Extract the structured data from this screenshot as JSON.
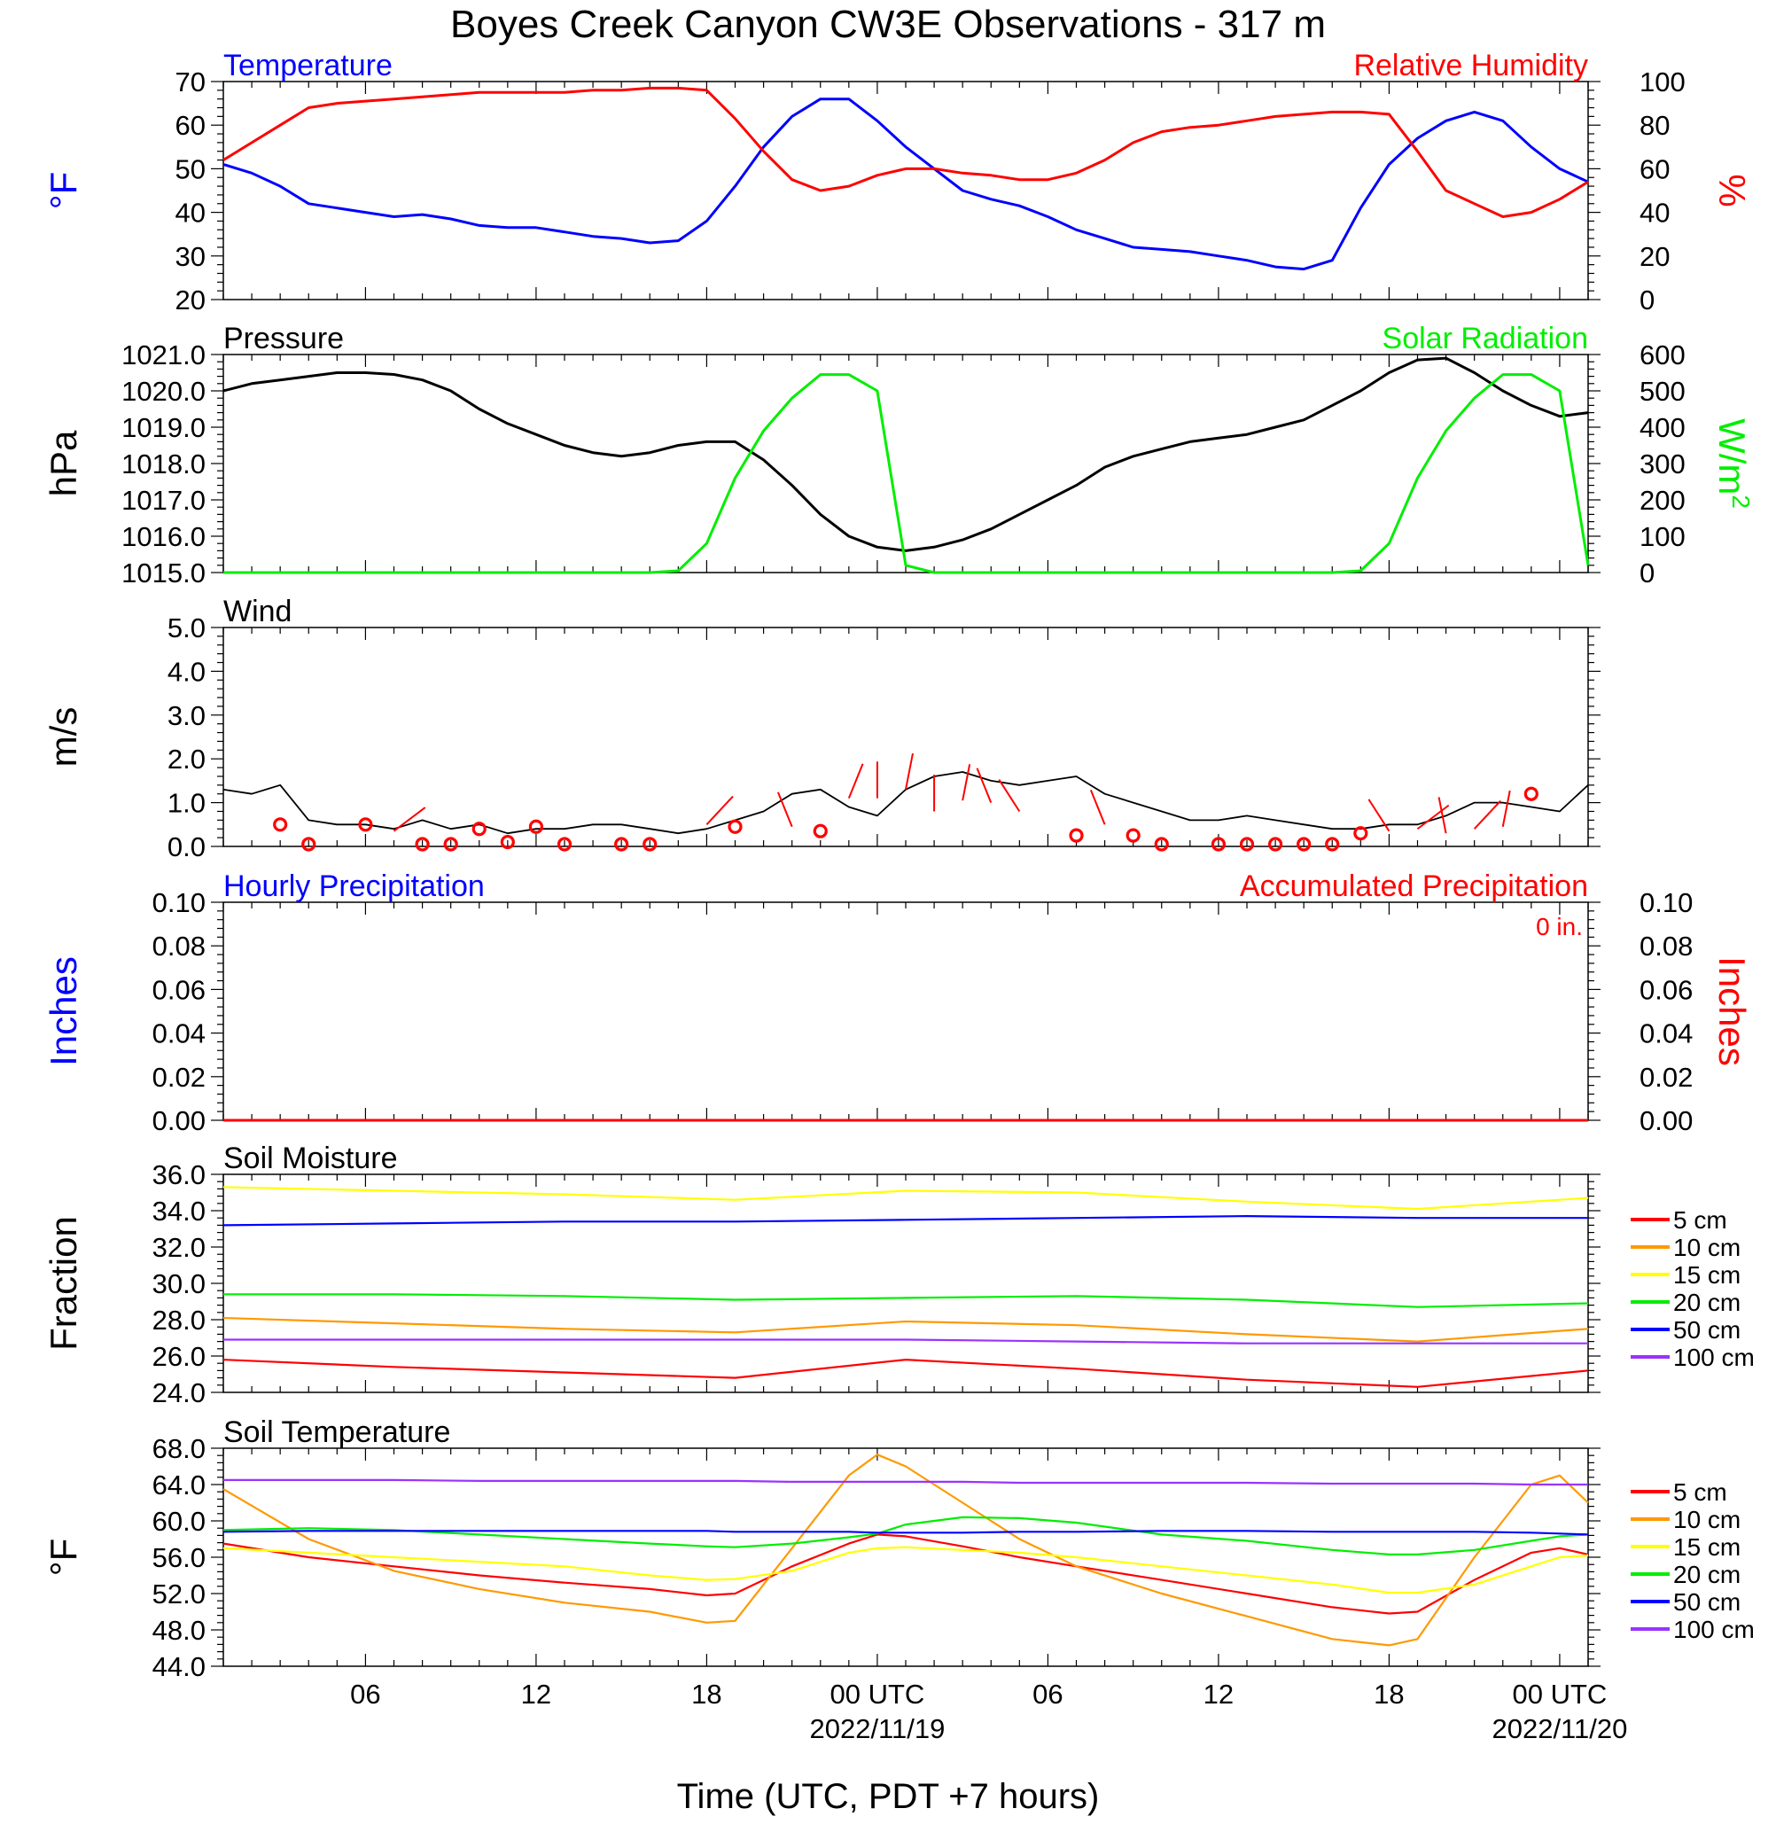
{
  "title": "Boyes Creek Canyon CW3E Observations - 317 m",
  "x_axis": {
    "label": "Time (UTC, PDT +7 hours)",
    "range_hours": [
      0,
      48
    ],
    "ticks": [
      {
        "hour": 5,
        "label": "06"
      },
      {
        "hour": 11,
        "label": "12"
      },
      {
        "hour": 17,
        "label": "18"
      },
      {
        "hour": 23,
        "label": "00 UTC",
        "date": "2022/11/19"
      },
      {
        "hour": 29,
        "label": "06"
      },
      {
        "hour": 35,
        "label": "12"
      },
      {
        "hour": 41,
        "label": "18"
      },
      {
        "hour": 47,
        "label": "00 UTC",
        "date": "2022/11/20"
      }
    ]
  },
  "colors": {
    "blue": "#0000ff",
    "red": "#ff0000",
    "green": "#00ee00",
    "black": "#000000",
    "orange": "#ff9900",
    "yellow": "#ffff00",
    "purple": "#9933ff"
  },
  "chart_data": [
    {
      "type": "line",
      "panel": "temperature-humidity",
      "left_title": "Temperature",
      "right_title": "Relative Humidity",
      "ylabel_left": "°F",
      "ylabel_right": "%",
      "ylim_left": [
        20,
        70
      ],
      "ylim_right": [
        0,
        100
      ],
      "yticks_left": [
        "20",
        "30",
        "40",
        "50",
        "60",
        "70"
      ],
      "yticks_right": [
        "0",
        "20",
        "40",
        "60",
        "80",
        "100"
      ],
      "x": [
        0,
        1,
        2,
        3,
        4,
        5,
        6,
        7,
        8,
        9,
        10,
        11,
        12,
        13,
        14,
        15,
        16,
        17,
        18,
        19,
        20,
        21,
        22,
        23,
        24,
        25,
        26,
        27,
        28,
        29,
        30,
        31,
        32,
        33,
        34,
        35,
        36,
        37,
        38,
        39,
        40,
        41,
        42,
        43,
        44,
        45,
        46,
        47,
        48
      ],
      "series": [
        {
          "name": "Temperature",
          "axis": "left",
          "color": "#0000ff",
          "values": [
            51,
            49,
            46,
            42,
            41,
            40,
            39,
            39.5,
            38.5,
            37,
            36.5,
            36.5,
            35.5,
            34.5,
            34,
            33,
            33.5,
            38,
            46,
            55,
            62,
            66,
            66,
            61,
            55,
            50,
            45,
            43,
            41.5,
            39,
            36,
            34,
            32,
            31.5,
            31,
            30,
            29,
            27.5,
            27,
            29,
            41,
            51,
            57,
            61,
            63,
            61,
            55,
            50,
            47
          ]
        },
        {
          "name": "Relative Humidity",
          "axis": "right",
          "color": "#ff0000",
          "values": [
            64,
            72,
            80,
            88,
            90,
            91,
            92,
            93,
            94,
            95,
            95,
            95,
            95,
            96,
            96,
            97,
            97,
            96,
            83,
            68,
            55,
            50,
            52,
            57,
            60,
            60,
            58,
            57,
            55,
            55,
            58,
            64,
            72,
            77,
            79,
            80,
            82,
            84,
            85,
            86,
            86,
            85,
            68,
            50,
            44,
            38,
            40,
            46,
            54
          ]
        }
      ]
    },
    {
      "type": "line",
      "panel": "pressure-solar",
      "left_title": "Pressure",
      "right_title": "Solar Radiation",
      "ylabel_left": "hPa",
      "ylabel_right": "W/m",
      "ylabel_right_sup": "2",
      "ylim_left": [
        1015,
        1021
      ],
      "ylim_right": [
        0,
        600
      ],
      "yticks_left": [
        "1015.0",
        "1016.0",
        "1017.0",
        "1018.0",
        "1019.0",
        "1020.0",
        "1021.0"
      ],
      "yticks_right": [
        "0",
        "100",
        "200",
        "300",
        "400",
        "500",
        "600"
      ],
      "x": [
        0,
        1,
        2,
        3,
        4,
        5,
        6,
        7,
        8,
        9,
        10,
        11,
        12,
        13,
        14,
        15,
        16,
        17,
        18,
        19,
        20,
        21,
        22,
        23,
        24,
        25,
        26,
        27,
        28,
        29,
        30,
        31,
        32,
        33,
        34,
        35,
        36,
        37,
        38,
        39,
        40,
        41,
        42,
        43,
        44,
        45,
        46,
        47,
        48
      ],
      "series": [
        {
          "name": "Pressure",
          "axis": "left",
          "color": "#000000",
          "values": [
            1020.0,
            1020.2,
            1020.3,
            1020.4,
            1020.5,
            1020.5,
            1020.45,
            1020.3,
            1020.0,
            1019.5,
            1019.1,
            1018.8,
            1018.5,
            1018.3,
            1018.2,
            1018.3,
            1018.5,
            1018.6,
            1018.6,
            1018.1,
            1017.4,
            1016.6,
            1016.0,
            1015.7,
            1015.6,
            1015.7,
            1015.9,
            1016.2,
            1016.6,
            1017.0,
            1017.4,
            1017.9,
            1018.2,
            1018.4,
            1018.6,
            1018.7,
            1018.8,
            1019.0,
            1019.2,
            1019.6,
            1020.0,
            1020.5,
            1020.85,
            1020.9,
            1020.5,
            1020.0,
            1019.6,
            1019.3,
            1019.4
          ]
        },
        {
          "name": "Solar Radiation",
          "axis": "right",
          "color": "#00ee00",
          "values": [
            0,
            0,
            0,
            0,
            0,
            0,
            0,
            0,
            0,
            0,
            0,
            0,
            0,
            0,
            0,
            0,
            5,
            80,
            260,
            390,
            480,
            545,
            545,
            500,
            20,
            0,
            0,
            0,
            0,
            0,
            0,
            0,
            0,
            0,
            0,
            0,
            0,
            0,
            0,
            0,
            5,
            80,
            260,
            390,
            480,
            545,
            545,
            500,
            20
          ]
        }
      ]
    },
    {
      "type": "line",
      "panel": "wind",
      "left_title": "Wind",
      "ylabel_left": "m/s",
      "ylim_left": [
        0,
        5
      ],
      "yticks_left": [
        "0.0",
        "1.0",
        "2.0",
        "3.0",
        "4.0",
        "5.0"
      ],
      "x": [
        0,
        1,
        2,
        3,
        4,
        5,
        6,
        7,
        8,
        9,
        10,
        11,
        12,
        13,
        14,
        15,
        16,
        17,
        18,
        19,
        20,
        21,
        22,
        23,
        24,
        25,
        26,
        27,
        28,
        29,
        30,
        31,
        32,
        33,
        34,
        35,
        36,
        37,
        38,
        39,
        40,
        41,
        42,
        43,
        44,
        45,
        46,
        47,
        48
      ],
      "series": [
        {
          "name": "Wind Speed",
          "axis": "left",
          "color": "#000000",
          "values": [
            1.3,
            1.2,
            1.4,
            0.6,
            0.5,
            0.5,
            0.4,
            0.6,
            0.4,
            0.5,
            0.3,
            0.4,
            0.4,
            0.5,
            0.5,
            0.4,
            0.3,
            0.4,
            0.6,
            0.8,
            1.2,
            1.3,
            0.9,
            0.7,
            1.3,
            1.6,
            1.7,
            1.5,
            1.4,
            1.5,
            1.6,
            1.2,
            1.0,
            0.8,
            0.6,
            0.6,
            0.7,
            0.6,
            0.5,
            0.4,
            0.4,
            0.5,
            0.5,
            0.7,
            1.0,
            1.0,
            0.9,
            0.8,
            1.4
          ]
        },
        {
          "name": "Wind Barbs",
          "axis": "left",
          "color": "#ff0000",
          "barb_x": [
            2,
            3,
            5,
            6,
            7,
            8,
            9,
            10,
            11,
            12,
            14,
            15,
            17,
            18,
            20,
            21,
            22,
            23,
            24,
            25,
            26,
            27,
            28,
            30,
            31,
            32,
            33,
            35,
            36,
            37,
            38,
            39,
            40,
            41,
            42,
            43,
            44,
            45,
            46
          ],
          "barb_y": [
            0.5,
            0.05,
            0.5,
            0.35,
            0.05,
            0.05,
            0.4,
            0.1,
            0.45,
            0.05,
            0.05,
            0.05,
            0.5,
            0.45,
            0.45,
            0.35,
            1.1,
            1.1,
            1.3,
            0.8,
            1.05,
            1.0,
            0.8,
            0.25,
            0.5,
            0.25,
            0.05,
            0.05,
            0.05,
            0.05,
            0.05,
            0.05,
            0.3,
            0.35,
            0.4,
            0.3,
            0.4,
            0.45,
            1.2
          ],
          "barb_angle": [
            110,
            0,
            130,
            140,
            0,
            0,
            0,
            0,
            0,
            0,
            0,
            0,
            130,
            0,
            70,
            110,
            110,
            90,
            100,
            90,
            100,
            70,
            60,
            110,
            70,
            0,
            0,
            0,
            0,
            0,
            0,
            0,
            0,
            60,
            140,
            80,
            130,
            100,
            100
          ],
          "barb_calm": [
            true,
            true,
            true,
            false,
            true,
            true,
            true,
            true,
            true,
            true,
            true,
            true,
            false,
            true,
            false,
            true,
            false,
            false,
            false,
            false,
            false,
            false,
            false,
            true,
            false,
            true,
            true,
            true,
            true,
            true,
            true,
            true,
            true,
            false,
            false,
            false,
            false,
            false,
            true
          ]
        }
      ]
    },
    {
      "type": "line",
      "panel": "precipitation",
      "left_title": "Hourly Precipitation",
      "right_title": "Accumulated Precipitation",
      "annotation": "0 in.",
      "ylabel_left": "Inches",
      "ylabel_right": "Inches",
      "ylim_left": [
        0,
        0.1
      ],
      "ylim_right": [
        0,
        0.1
      ],
      "yticks_left": [
        "0.00",
        "0.02",
        "0.04",
        "0.06",
        "0.08",
        "0.10"
      ],
      "yticks_right": [
        "0.00",
        "0.02",
        "0.04",
        "0.06",
        "0.08",
        "0.10"
      ],
      "x": [
        0,
        48
      ],
      "series": [
        {
          "name": "Hourly Precipitation",
          "axis": "left",
          "color": "#0000ff",
          "values": [
            0,
            0
          ]
        },
        {
          "name": "Accumulated Precipitation",
          "axis": "right",
          "color": "#ff0000",
          "values": [
            0,
            0
          ]
        }
      ]
    },
    {
      "type": "line",
      "panel": "soil-moisture",
      "left_title": "Soil Moisture",
      "ylabel_left": "Fraction",
      "ylim_left": [
        24,
        36
      ],
      "yticks_left": [
        "24.0",
        "26.0",
        "28.0",
        "30.0",
        "32.0",
        "34.0",
        "36.0"
      ],
      "legend_placement": "right",
      "x": [
        0,
        6,
        12,
        18,
        24,
        30,
        36,
        42,
        48
      ],
      "series": [
        {
          "name": "5 cm",
          "color": "#ff0000",
          "values": [
            25.8,
            25.4,
            25.1,
            24.8,
            25.8,
            25.3,
            24.7,
            24.3,
            25.2
          ]
        },
        {
          "name": "10 cm",
          "color": "#ff9900",
          "values": [
            28.1,
            27.8,
            27.5,
            27.3,
            27.9,
            27.7,
            27.2,
            26.8,
            27.5
          ]
        },
        {
          "name": "15 cm",
          "color": "#ffff00",
          "values": [
            35.3,
            35.1,
            34.9,
            34.6,
            35.1,
            35.0,
            34.5,
            34.1,
            34.7
          ]
        },
        {
          "name": "20 cm",
          "color": "#00ee00",
          "values": [
            29.4,
            29.4,
            29.3,
            29.1,
            29.2,
            29.3,
            29.1,
            28.7,
            28.9
          ]
        },
        {
          "name": "50 cm",
          "color": "#0000ff",
          "values": [
            33.2,
            33.3,
            33.4,
            33.4,
            33.5,
            33.6,
            33.7,
            33.6,
            33.6
          ]
        },
        {
          "name": "100 cm",
          "color": "#9933ff",
          "values": [
            26.9,
            26.9,
            26.9,
            26.9,
            26.9,
            26.8,
            26.7,
            26.7,
            26.7
          ]
        }
      ]
    },
    {
      "type": "line",
      "panel": "soil-temperature",
      "left_title": "Soil Temperature",
      "ylabel_left": "°F",
      "ylim_left": [
        44,
        68
      ],
      "yticks_left": [
        "44.0",
        "48.0",
        "52.0",
        "56.0",
        "60.0",
        "64.0",
        "68.0"
      ],
      "legend_placement": "right",
      "x": [
        0,
        3,
        6,
        9,
        12,
        15,
        17,
        18,
        20,
        22,
        23,
        24,
        26,
        28,
        30,
        33,
        36,
        39,
        41,
        42,
        44,
        46,
        47,
        48
      ],
      "series": [
        {
          "name": "5 cm",
          "color": "#ff0000",
          "values": [
            57.5,
            56,
            55,
            54,
            53.2,
            52.5,
            51.8,
            52,
            55,
            57.5,
            58.5,
            58.3,
            57.2,
            56,
            55,
            53.5,
            52,
            50.5,
            49.8,
            50,
            53.5,
            56.5,
            57,
            56.3
          ]
        },
        {
          "name": "10 cm",
          "color": "#ff9900",
          "values": [
            63.5,
            58,
            54.5,
            52.5,
            51,
            50,
            48.8,
            49,
            57,
            65,
            67.3,
            66,
            62,
            58,
            55,
            52,
            49.5,
            47,
            46.3,
            47,
            56,
            64,
            65,
            62
          ]
        },
        {
          "name": "15 cm",
          "color": "#ffff00",
          "values": [
            57,
            56.5,
            56,
            55.5,
            55,
            54,
            53.5,
            53.6,
            54.5,
            56.5,
            57,
            57.1,
            56.8,
            56.5,
            56,
            55,
            54,
            53,
            52.1,
            52.1,
            53,
            55,
            56,
            56.2
          ]
        },
        {
          "name": "20 cm",
          "color": "#00ee00",
          "values": [
            59,
            59.2,
            59,
            58.5,
            58,
            57.5,
            57.2,
            57.1,
            57.5,
            58.2,
            58.6,
            59.6,
            60.4,
            60.3,
            59.8,
            58.5,
            57.8,
            56.8,
            56.3,
            56.3,
            56.8,
            57.8,
            58.3,
            58.5
          ]
        },
        {
          "name": "50 cm",
          "color": "#0000ff",
          "values": [
            58.8,
            58.9,
            58.9,
            58.9,
            58.9,
            58.9,
            58.9,
            58.8,
            58.8,
            58.8,
            58.7,
            58.7,
            58.7,
            58.8,
            58.8,
            58.9,
            58.9,
            58.8,
            58.8,
            58.8,
            58.8,
            58.7,
            58.6,
            58.5
          ]
        },
        {
          "name": "100 cm",
          "color": "#9933ff",
          "values": [
            64.5,
            64.5,
            64.5,
            64.4,
            64.4,
            64.4,
            64.4,
            64.4,
            64.3,
            64.3,
            64.3,
            64.3,
            64.3,
            64.2,
            64.2,
            64.2,
            64.2,
            64.1,
            64.1,
            64.1,
            64.1,
            64.0,
            64.0,
            64.0
          ]
        }
      ]
    }
  ]
}
